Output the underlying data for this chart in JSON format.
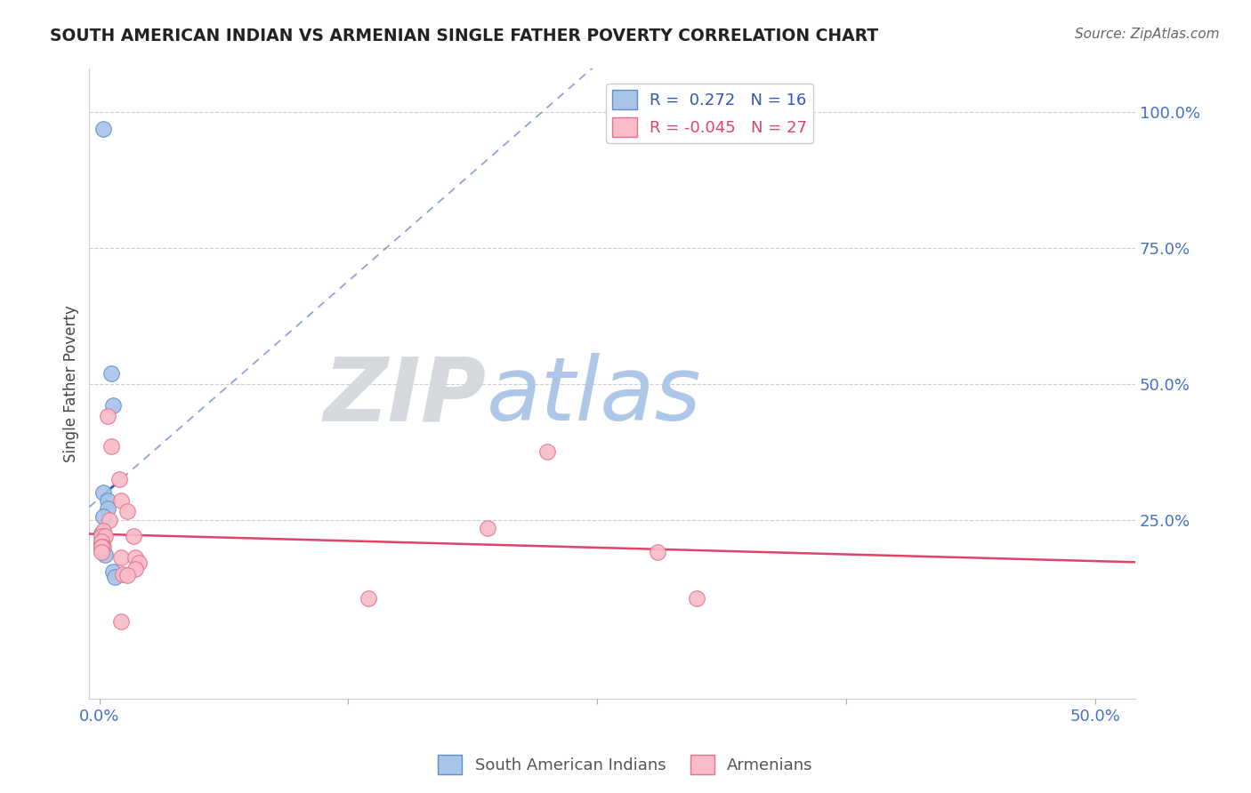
{
  "title": "SOUTH AMERICAN INDIAN VS ARMENIAN SINGLE FATHER POVERTY CORRELATION CHART",
  "source": "Source: ZipAtlas.com",
  "ylabel": "Single Father Poverty",
  "xlabel_ticks": [
    "0.0%",
    "",
    "",
    "",
    "50.0%"
  ],
  "xlabel_tick_vals": [
    0.0,
    0.125,
    0.25,
    0.375,
    0.5
  ],
  "ylabel_ticks_right": [
    "100.0%",
    "75.0%",
    "50.0%",
    "25.0%"
  ],
  "ylabel_tick_vals_right": [
    1.0,
    0.75,
    0.5,
    0.25
  ],
  "xlim": [
    -0.005,
    0.52
  ],
  "ylim": [
    -0.08,
    1.08
  ],
  "blue_R": 0.272,
  "blue_N": 16,
  "pink_R": -0.045,
  "pink_N": 27,
  "blue_color": "#a8c4e8",
  "pink_color": "#f8bcc8",
  "blue_edge_color": "#6090c8",
  "pink_edge_color": "#e87090",
  "blue_line_color": "#3355bb",
  "pink_line_color": "#dd4466",
  "blue_scatter": [
    [
      0.002,
      0.97
    ],
    [
      0.006,
      0.52
    ],
    [
      0.007,
      0.46
    ],
    [
      0.002,
      0.3
    ],
    [
      0.004,
      0.285
    ],
    [
      0.004,
      0.27
    ],
    [
      0.002,
      0.255
    ],
    [
      0.001,
      0.225
    ],
    [
      0.002,
      0.215
    ],
    [
      0.001,
      0.21
    ],
    [
      0.001,
      0.205
    ],
    [
      0.001,
      0.2
    ],
    [
      0.001,
      0.195
    ],
    [
      0.003,
      0.185
    ],
    [
      0.007,
      0.155
    ],
    [
      0.008,
      0.145
    ]
  ],
  "pink_scatter": [
    [
      0.004,
      0.44
    ],
    [
      0.006,
      0.385
    ],
    [
      0.01,
      0.325
    ],
    [
      0.011,
      0.285
    ],
    [
      0.014,
      0.265
    ],
    [
      0.005,
      0.25
    ],
    [
      0.002,
      0.23
    ],
    [
      0.001,
      0.22
    ],
    [
      0.003,
      0.22
    ],
    [
      0.017,
      0.22
    ],
    [
      0.001,
      0.21
    ],
    [
      0.002,
      0.2
    ],
    [
      0.001,
      0.2
    ],
    [
      0.001,
      0.2
    ],
    [
      0.001,
      0.19
    ],
    [
      0.011,
      0.18
    ],
    [
      0.018,
      0.18
    ],
    [
      0.02,
      0.17
    ],
    [
      0.018,
      0.16
    ],
    [
      0.012,
      0.15
    ],
    [
      0.014,
      0.148
    ],
    [
      0.195,
      0.235
    ],
    [
      0.135,
      0.105
    ],
    [
      0.225,
      0.375
    ],
    [
      0.28,
      0.19
    ],
    [
      0.3,
      0.105
    ],
    [
      0.011,
      0.062
    ]
  ],
  "background_color": "#ffffff",
  "zip_color": "#d5d8dc",
  "atlas_color": "#aec6e8"
}
